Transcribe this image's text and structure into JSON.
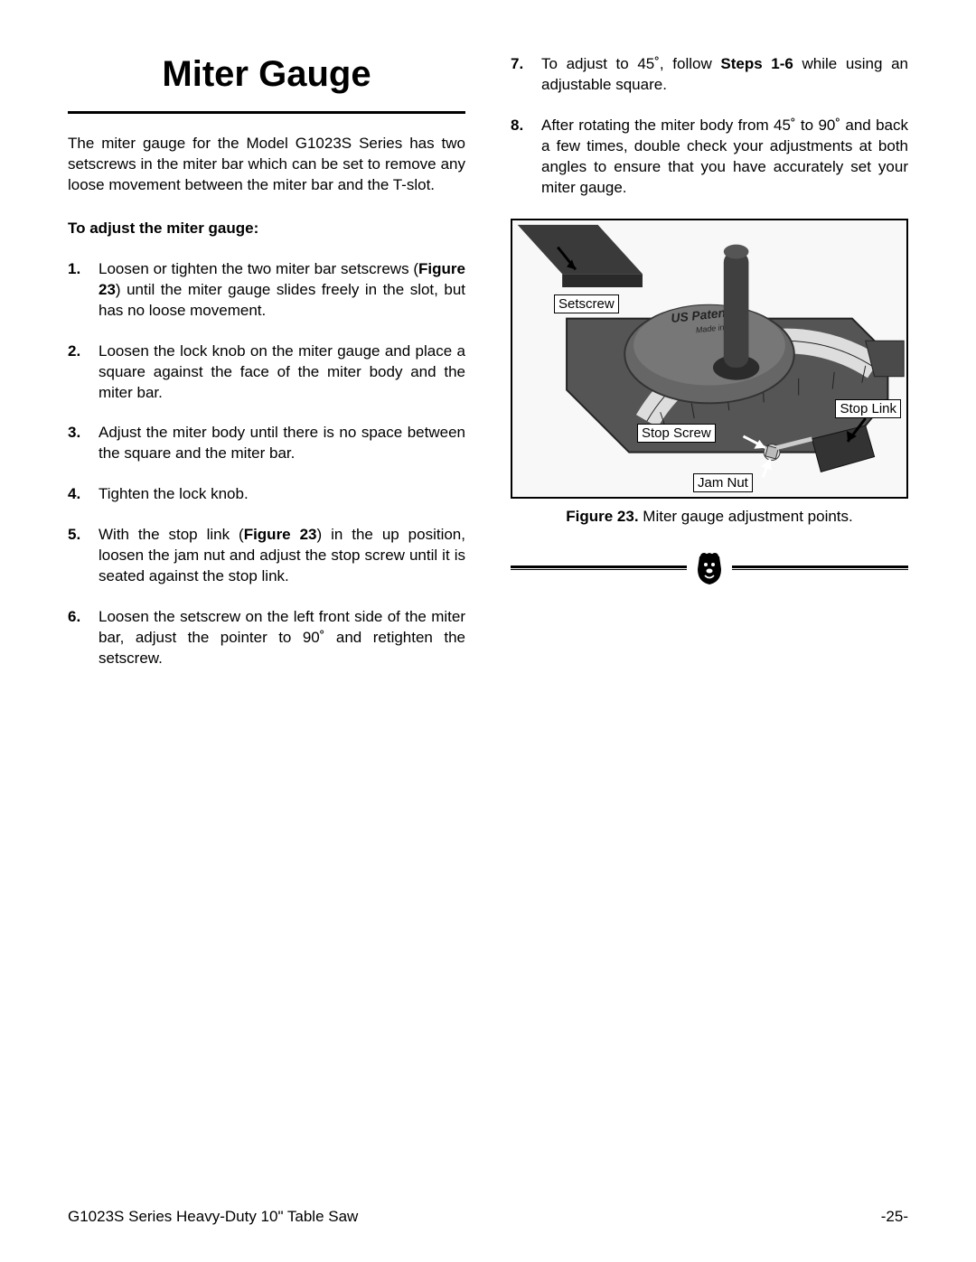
{
  "title": "Miter Gauge",
  "intro": "The miter gauge for the Model G1023S Series has two setscrews in the miter bar which can be set to remove any loose movement between the miter bar and the T-slot.",
  "subhead": "To adjust the miter gauge:",
  "steps_left": [
    {
      "n": "1.",
      "before": "Loosen or tighten the two miter bar setscrews (",
      "bold": "Figure 23",
      "after": ") until the miter gauge slides freely in the slot, but has no loose movement."
    },
    {
      "n": "2.",
      "before": "Loosen the lock knob on the miter gauge and place a square against the face of the miter body and the miter bar.",
      "bold": "",
      "after": ""
    },
    {
      "n": "3.",
      "before": "Adjust the miter body until there is no space between the square and the miter bar.",
      "bold": "",
      "after": ""
    },
    {
      "n": "4.",
      "before": "Tighten the lock knob.",
      "bold": "",
      "after": ""
    },
    {
      "n": "5.",
      "before": "With the stop link (",
      "bold": "Figure 23",
      "after": ") in the up position, loosen the jam nut and adjust the stop screw until it is seated against the stop link."
    },
    {
      "n": "6.",
      "before": "Loosen the setscrew on the left front side of the miter bar, adjust the pointer to 90˚ and retighten the setscrew.",
      "bold": "",
      "after": ""
    }
  ],
  "steps_right": [
    {
      "n": "7.",
      "before": "To adjust to 45˚, follow ",
      "bold": "Steps 1-6",
      "after": " while using an adjustable square."
    },
    {
      "n": "8.",
      "before": "After rotating the miter body from 45˚ to 90˚ and back a few times, double check your adjustments at both angles to ensure that you have accurately set your miter gauge.",
      "bold": "",
      "after": ""
    }
  ],
  "figure": {
    "caption_bold": "Figure 23.",
    "caption_rest": " Miter gauge adjustment points.",
    "callouts": {
      "setscrew": "Setscrew",
      "stop_link": "Stop Link",
      "stop_screw": "Stop Screw",
      "jam_nut": "Jam Nut"
    },
    "body_label": "US Patent #5",
    "body_sublabel": "Made in T"
  },
  "footer": {
    "left": "G1023S Series Heavy-Duty 10\" Table Saw",
    "right": "-25-"
  }
}
